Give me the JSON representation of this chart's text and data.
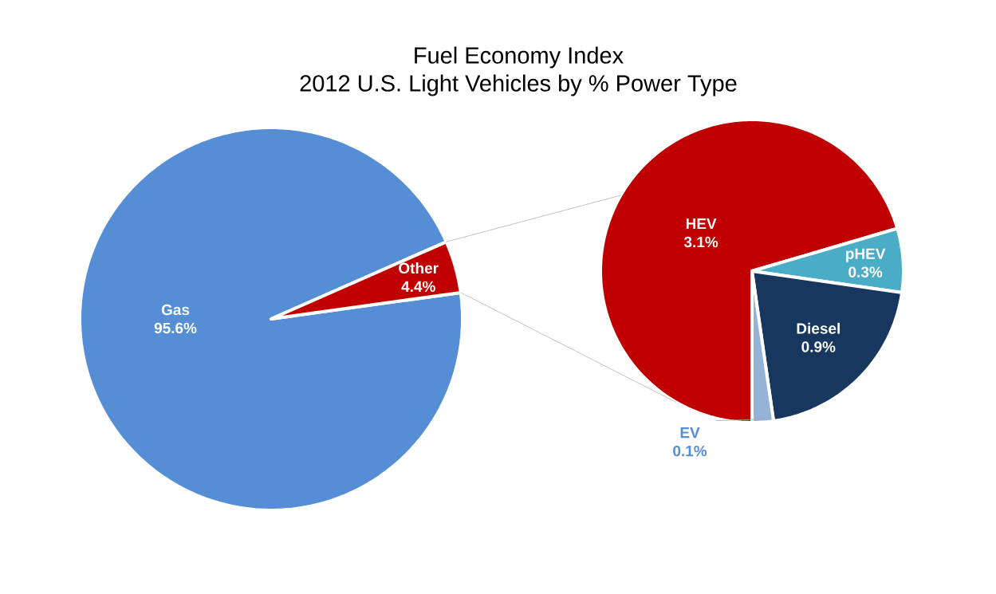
{
  "chart_data": [
    {
      "type": "pie",
      "title": "Fuel Economy Index",
      "subtitle": "2012 U.S. Light Vehicles by % Power Type",
      "categories": [
        "Gas",
        "Other"
      ],
      "values": [
        95.6,
        4.4
      ],
      "colors": [
        "#558ed5",
        "#c00000"
      ],
      "value_labels": [
        "95.6%",
        "4.4%"
      ]
    },
    {
      "type": "pie",
      "categories": [
        "HEV",
        "pHEV",
        "Diesel",
        "EV"
      ],
      "values": [
        3.1,
        0.3,
        0.9,
        0.1
      ],
      "colors": [
        "#c00000",
        "#4bacc6",
        "#17375e",
        "#95b3d7"
      ],
      "value_labels": [
        "3.1%",
        "0.3%",
        "0.9%",
        "0.1%"
      ]
    }
  ]
}
